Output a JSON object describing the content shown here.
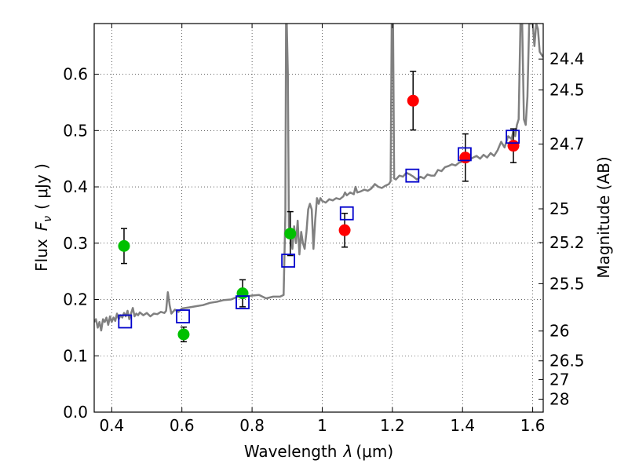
{
  "chart_data": {
    "type": "scatter",
    "title": "",
    "xlabel_text": "Wavelength",
    "xlabel_symbol": "λ",
    "xlabel_unit": "(μm)",
    "ylabel_text": "Flux",
    "ylabel_symbol": "F",
    "ylabel_subscript": "ν",
    "ylabel_unit": "( μJy )",
    "y2label": "Magnitude (AB)",
    "xlim": [
      0.35,
      1.63
    ],
    "ylim": [
      0.0,
      0.69
    ],
    "grid": true,
    "xticks": [
      0.4,
      0.6,
      0.8,
      1.0,
      1.2,
      1.4,
      1.6
    ],
    "xtick_labels": [
      "0.4",
      "0.6",
      "0.8",
      "1",
      "1.2",
      "1.4",
      "1.6"
    ],
    "yticks": [
      0.0,
      0.1,
      0.2,
      0.3,
      0.4,
      0.5,
      0.6
    ],
    "ytick_labels": [
      "0.0",
      "0.1",
      "0.2",
      "0.3",
      "0.4",
      "0.5",
      "0.6"
    ],
    "y2ticks": [
      {
        "label": "24.4",
        "flux": 0.627
      },
      {
        "label": "24.5",
        "flux": 0.572
      },
      {
        "label": "24.7",
        "flux": 0.476
      },
      {
        "label": "25",
        "flux": 0.361
      },
      {
        "label": "25.2",
        "flux": 0.301
      },
      {
        "label": "25.5",
        "flux": 0.228
      },
      {
        "label": "26",
        "flux": 0.144
      },
      {
        "label": "26.5",
        "flux": 0.091
      },
      {
        "label": "27",
        "flux": 0.058
      },
      {
        "label": "28",
        "flux": 0.023
      }
    ],
    "colors": {
      "spectrum": "#808080",
      "green_points": "#00c000",
      "red_points": "#ff0000",
      "model_squares": "#0000cc",
      "errorbars": "#000000"
    },
    "series": [
      {
        "kind": "spectrum",
        "points": [
          [
            0.35,
            0.16
          ],
          [
            0.355,
            0.165
          ],
          [
            0.36,
            0.15
          ],
          [
            0.365,
            0.16
          ],
          [
            0.37,
            0.145
          ],
          [
            0.375,
            0.165
          ],
          [
            0.38,
            0.16
          ],
          [
            0.385,
            0.168
          ],
          [
            0.39,
            0.155
          ],
          [
            0.395,
            0.17
          ],
          [
            0.4,
            0.16
          ],
          [
            0.405,
            0.168
          ],
          [
            0.41,
            0.162
          ],
          [
            0.415,
            0.175
          ],
          [
            0.42,
            0.165
          ],
          [
            0.425,
            0.172
          ],
          [
            0.43,
            0.168
          ],
          [
            0.435,
            0.176
          ],
          [
            0.44,
            0.17
          ],
          [
            0.445,
            0.18
          ],
          [
            0.45,
            0.165
          ],
          [
            0.455,
            0.175
          ],
          [
            0.46,
            0.185
          ],
          [
            0.465,
            0.17
          ],
          [
            0.47,
            0.175
          ],
          [
            0.475,
            0.172
          ],
          [
            0.48,
            0.177
          ],
          [
            0.49,
            0.172
          ],
          [
            0.5,
            0.176
          ],
          [
            0.51,
            0.17
          ],
          [
            0.52,
            0.175
          ],
          [
            0.53,
            0.174
          ],
          [
            0.54,
            0.178
          ],
          [
            0.55,
            0.176
          ],
          [
            0.555,
            0.18
          ],
          [
            0.56,
            0.213
          ],
          [
            0.565,
            0.19
          ],
          [
            0.57,
            0.175
          ],
          [
            0.58,
            0.182
          ],
          [
            0.59,
            0.178
          ],
          [
            0.6,
            0.184
          ],
          [
            0.62,
            0.186
          ],
          [
            0.64,
            0.188
          ],
          [
            0.66,
            0.19
          ],
          [
            0.68,
            0.194
          ],
          [
            0.7,
            0.196
          ],
          [
            0.72,
            0.199
          ],
          [
            0.74,
            0.2
          ],
          [
            0.76,
            0.205
          ],
          [
            0.78,
            0.205
          ],
          [
            0.8,
            0.207
          ],
          [
            0.82,
            0.208
          ],
          [
            0.84,
            0.202
          ],
          [
            0.86,
            0.205
          ],
          [
            0.88,
            0.205
          ],
          [
            0.89,
            0.208
          ],
          [
            0.895,
            0.35
          ],
          [
            0.897,
            0.69
          ],
          [
            0.899,
            0.69
          ],
          [
            0.902,
            0.6
          ],
          [
            0.905,
            0.33
          ],
          [
            0.91,
            0.31
          ],
          [
            0.915,
            0.29
          ],
          [
            0.92,
            0.33
          ],
          [
            0.925,
            0.3
          ],
          [
            0.93,
            0.34
          ],
          [
            0.935,
            0.28
          ],
          [
            0.94,
            0.32
          ],
          [
            0.945,
            0.3
          ],
          [
            0.95,
            0.29
          ],
          [
            0.955,
            0.32
          ],
          [
            0.96,
            0.36
          ],
          [
            0.965,
            0.37
          ],
          [
            0.97,
            0.36
          ],
          [
            0.975,
            0.29
          ],
          [
            0.98,
            0.34
          ],
          [
            0.985,
            0.38
          ],
          [
            0.99,
            0.37
          ],
          [
            0.995,
            0.38
          ],
          [
            1.0,
            0.375
          ],
          [
            1.01,
            0.372
          ],
          [
            1.02,
            0.378
          ],
          [
            1.03,
            0.376
          ],
          [
            1.04,
            0.38
          ],
          [
            1.05,
            0.378
          ],
          [
            1.06,
            0.383
          ],
          [
            1.065,
            0.39
          ],
          [
            1.07,
            0.385
          ],
          [
            1.08,
            0.39
          ],
          [
            1.09,
            0.387
          ],
          [
            1.095,
            0.4
          ],
          [
            1.1,
            0.39
          ],
          [
            1.11,
            0.392
          ],
          [
            1.12,
            0.395
          ],
          [
            1.13,
            0.393
          ],
          [
            1.14,
            0.397
          ],
          [
            1.15,
            0.405
          ],
          [
            1.16,
            0.4
          ],
          [
            1.17,
            0.398
          ],
          [
            1.18,
            0.402
          ],
          [
            1.19,
            0.405
          ],
          [
            1.195,
            0.41
          ],
          [
            1.198,
            0.69
          ],
          [
            1.202,
            0.69
          ],
          [
            1.205,
            0.415
          ],
          [
            1.21,
            0.413
          ],
          [
            1.22,
            0.42
          ],
          [
            1.23,
            0.418
          ],
          [
            1.24,
            0.425
          ],
          [
            1.25,
            0.422
          ],
          [
            1.26,
            0.418
          ],
          [
            1.27,
            0.413
          ],
          [
            1.28,
            0.418
          ],
          [
            1.29,
            0.415
          ],
          [
            1.3,
            0.422
          ],
          [
            1.31,
            0.42
          ],
          [
            1.32,
            0.42
          ],
          [
            1.33,
            0.43
          ],
          [
            1.34,
            0.428
          ],
          [
            1.35,
            0.435
          ],
          [
            1.36,
            0.437
          ],
          [
            1.37,
            0.44
          ],
          [
            1.38,
            0.438
          ],
          [
            1.39,
            0.443
          ],
          [
            1.4,
            0.445
          ],
          [
            1.41,
            0.45
          ],
          [
            1.42,
            0.448
          ],
          [
            1.43,
            0.452
          ],
          [
            1.44,
            0.455
          ],
          [
            1.45,
            0.45
          ],
          [
            1.46,
            0.457
          ],
          [
            1.47,
            0.452
          ],
          [
            1.48,
            0.46
          ],
          [
            1.49,
            0.455
          ],
          [
            1.5,
            0.465
          ],
          [
            1.51,
            0.48
          ],
          [
            1.52,
            0.47
          ],
          [
            1.53,
            0.49
          ],
          [
            1.54,
            0.485
          ],
          [
            1.545,
            0.5
          ],
          [
            1.55,
            0.49
          ],
          [
            1.555,
            0.51
          ],
          [
            1.56,
            0.52
          ],
          [
            1.565,
            0.69
          ],
          [
            1.57,
            0.69
          ],
          [
            1.575,
            0.52
          ],
          [
            1.58,
            0.51
          ],
          [
            1.585,
            0.56
          ],
          [
            1.59,
            0.69
          ],
          [
            1.6,
            0.69
          ],
          [
            1.605,
            0.65
          ],
          [
            1.61,
            0.69
          ],
          [
            1.615,
            0.68
          ],
          [
            1.62,
            0.64
          ],
          [
            1.63,
            0.63
          ]
        ]
      },
      {
        "kind": "green_points",
        "points": [
          {
            "x": 0.435,
            "y": 0.295,
            "err": 0.031
          },
          {
            "x": 0.605,
            "y": 0.138,
            "err": 0.013
          },
          {
            "x": 0.773,
            "y": 0.211,
            "err": 0.024
          },
          {
            "x": 0.909,
            "y": 0.317,
            "err": 0.039
          }
        ]
      },
      {
        "kind": "red_points",
        "points": [
          {
            "x": 1.064,
            "y": 0.323,
            "err": 0.03
          },
          {
            "x": 1.259,
            "y": 0.553,
            "err": 0.052
          },
          {
            "x": 1.408,
            "y": 0.452,
            "err": 0.042
          },
          {
            "x": 1.545,
            "y": 0.473,
            "err": 0.03
          }
        ]
      },
      {
        "kind": "model_squares",
        "points": [
          {
            "x": 0.438,
            "y": 0.161
          },
          {
            "x": 0.603,
            "y": 0.17
          },
          {
            "x": 0.773,
            "y": 0.195
          },
          {
            "x": 0.903,
            "y": 0.269
          },
          {
            "x": 1.07,
            "y": 0.353
          },
          {
            "x": 1.257,
            "y": 0.42
          },
          {
            "x": 1.406,
            "y": 0.458
          },
          {
            "x": 1.543,
            "y": 0.489
          }
        ]
      }
    ]
  }
}
